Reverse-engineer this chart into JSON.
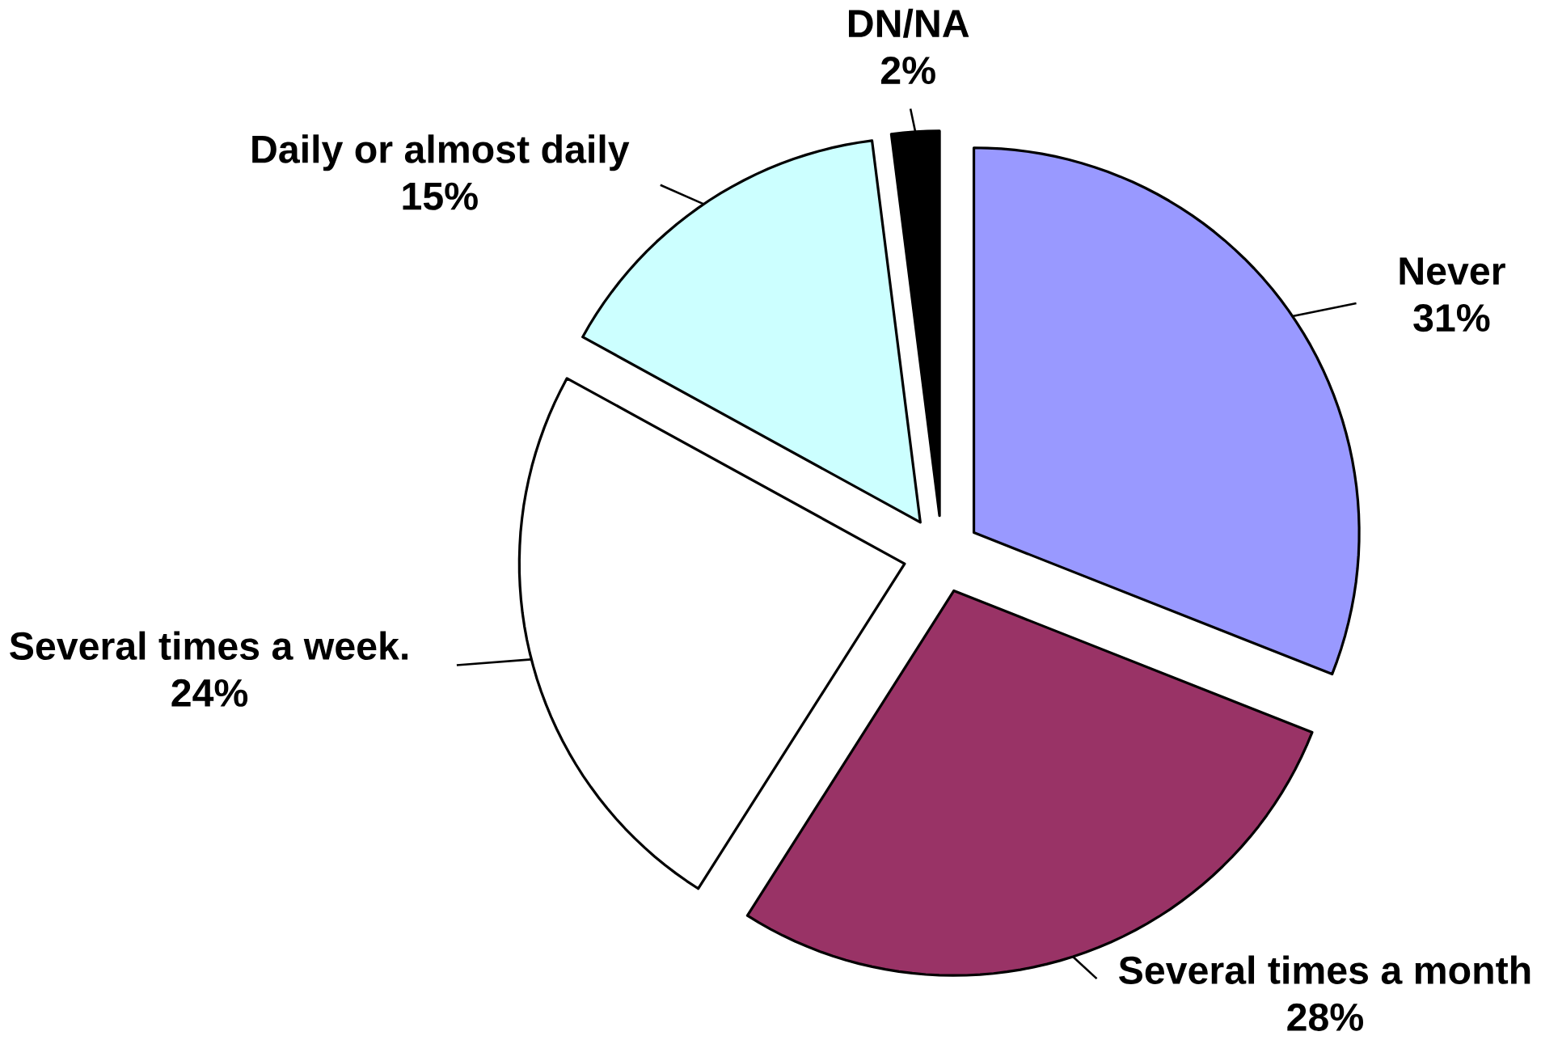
{
  "chart_data": {
    "type": "pie",
    "categories": [
      "Never",
      "Several times a month",
      "Several times a week.",
      "Daily or almost daily",
      "DN/NA"
    ],
    "values": [
      31,
      28,
      24,
      15,
      2
    ],
    "value_labels": [
      "31%",
      "28%",
      "24%",
      "15%",
      "2%"
    ],
    "colors": [
      "#9999ff",
      "#993366",
      "#ffffff",
      "#ccffff",
      "#000000"
    ]
  }
}
